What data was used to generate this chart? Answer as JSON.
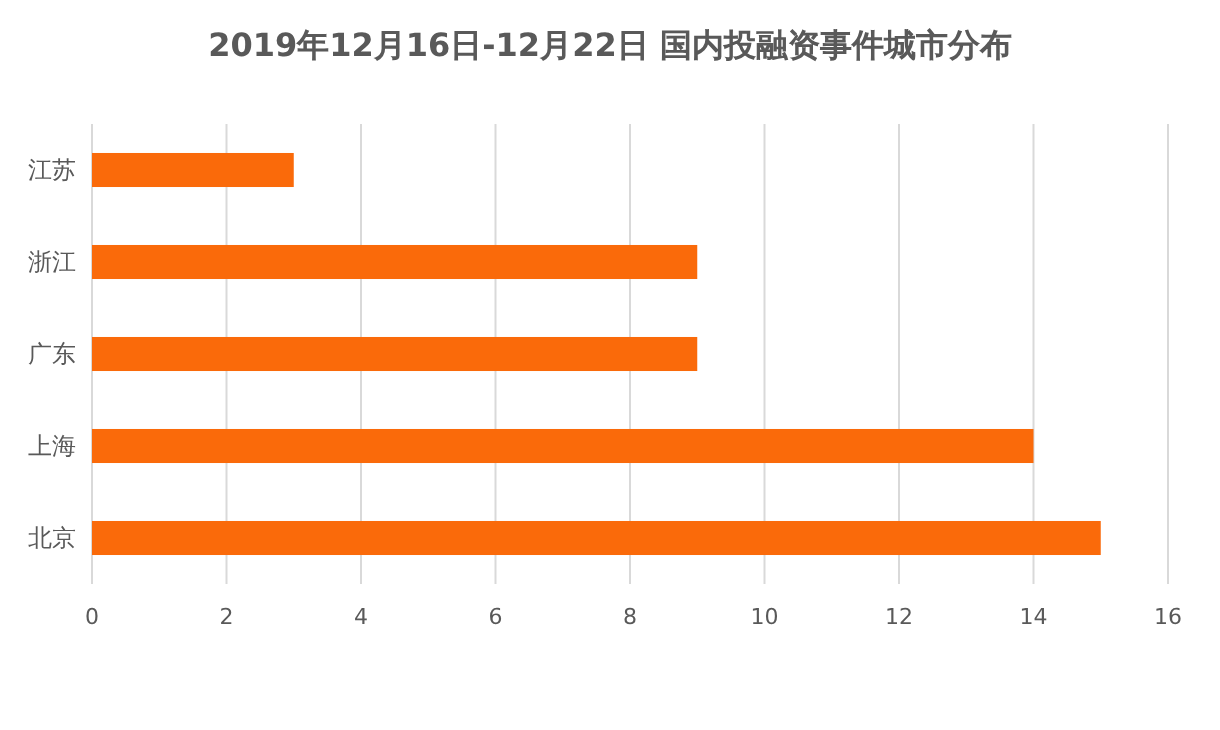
{
  "chart_data": {
    "type": "bar",
    "orientation": "horizontal",
    "title": "2019年12月16日-12月22日 国内投融资事件城市分布",
    "categories": [
      "江苏",
      "浙江",
      "广东",
      "上海",
      "北京"
    ],
    "values": [
      3,
      9,
      9,
      14,
      15
    ],
    "color": "#fa6a0a",
    "xlim": [
      0,
      16
    ],
    "xticks": [
      0,
      2,
      4,
      6,
      8,
      10,
      12,
      14,
      16
    ],
    "grid": "x"
  }
}
